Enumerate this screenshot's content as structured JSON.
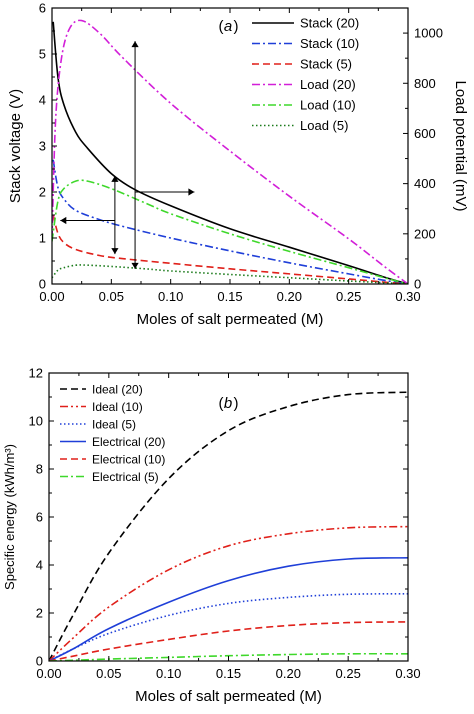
{
  "chart_data": [
    {
      "type": "line",
      "panel_label": "(a)",
      "xlabel": "Moles of salt permeated (M)",
      "ylabel": "Stack voltage (V)",
      "y2label": "Load potential (mV)",
      "xlim": [
        0,
        0.3
      ],
      "ylim": [
        0,
        6
      ],
      "y2lim": [
        0,
        1100
      ],
      "xticks": [
        "0.00",
        "0.05",
        "0.10",
        "0.15",
        "0.20",
        "0.25",
        "0.30"
      ],
      "yticks": [
        "0",
        "1",
        "2",
        "3",
        "4",
        "5",
        "6"
      ],
      "y2ticks": [
        "0",
        "200",
        "400",
        "600",
        "800",
        "1000"
      ],
      "legend_position": "top-right",
      "series": [
        {
          "name": "Stack (20)",
          "axis": "left",
          "color": "#000000",
          "dash": "solid",
          "x": [
            0.001,
            0.005,
            0.01,
            0.02,
            0.03,
            0.05,
            0.07,
            0.1,
            0.15,
            0.2,
            0.25,
            0.28,
            0.3
          ],
          "y": [
            5.7,
            4.5,
            3.9,
            3.3,
            2.95,
            2.4,
            2.05,
            1.7,
            1.2,
            0.8,
            0.4,
            0.15,
            0.0
          ]
        },
        {
          "name": "Stack (10)",
          "axis": "left",
          "color": "#1f3fd8",
          "dash": "dashdot",
          "x": [
            0.001,
            0.005,
            0.01,
            0.02,
            0.04,
            0.06,
            0.1,
            0.15,
            0.2,
            0.25,
            0.28,
            0.3
          ],
          "y": [
            2.7,
            2.1,
            1.85,
            1.6,
            1.4,
            1.25,
            1.0,
            0.72,
            0.46,
            0.22,
            0.08,
            0.0
          ]
        },
        {
          "name": "Stack (5)",
          "axis": "left",
          "color": "#e0201a",
          "dash": "dash",
          "x": [
            0.001,
            0.005,
            0.01,
            0.02,
            0.04,
            0.06,
            0.1,
            0.15,
            0.2,
            0.25,
            0.28,
            0.3
          ],
          "y": [
            1.5,
            1.1,
            0.9,
            0.75,
            0.62,
            0.55,
            0.45,
            0.33,
            0.22,
            0.11,
            0.04,
            0.0
          ]
        },
        {
          "name": "Load (20)",
          "axis": "right",
          "color": "#d21fd8",
          "dash": "dashdot",
          "x": [
            0.0,
            0.003,
            0.008,
            0.015,
            0.025,
            0.04,
            0.06,
            0.1,
            0.15,
            0.2,
            0.25,
            0.28,
            0.3
          ],
          "y": [
            180,
            650,
            900,
            1020,
            1050,
            1000,
            900,
            720,
            530,
            350,
            180,
            70,
            0
          ]
        },
        {
          "name": "Load (10)",
          "axis": "right",
          "color": "#3fd82b",
          "dash": "dashdot",
          "x": [
            0.0,
            0.005,
            0.01,
            0.02,
            0.03,
            0.05,
            0.08,
            0.1,
            0.15,
            0.2,
            0.25,
            0.28,
            0.3
          ],
          "y": [
            170,
            330,
            380,
            410,
            410,
            380,
            320,
            280,
            200,
            130,
            65,
            25,
            0
          ]
        },
        {
          "name": "Load (5)",
          "axis": "right",
          "color": "#1a7a1a",
          "dash": "dot",
          "x": [
            0.0,
            0.005,
            0.01,
            0.02,
            0.03,
            0.05,
            0.08,
            0.1,
            0.15,
            0.2,
            0.25,
            0.28,
            0.3
          ],
          "y": [
            25,
            55,
            65,
            75,
            75,
            70,
            60,
            52,
            38,
            25,
            12,
            5,
            0
          ]
        }
      ],
      "annotations": [
        {
          "type": "double-arrow",
          "x": 0.07,
          "y_from": 0.33,
          "y_to": 5.28,
          "axis": "left"
        },
        {
          "type": "double-arrow",
          "x": 0.053,
          "y_from": 0.65,
          "y_to": 2.35,
          "axis": "left"
        },
        {
          "type": "arrow",
          "x_from": 0.053,
          "x_to": 0.007,
          "y": 1.38,
          "axis": "left"
        },
        {
          "type": "arrow",
          "x_from": 0.07,
          "x_to": 0.12,
          "y": 2.0,
          "axis": "left"
        }
      ]
    },
    {
      "type": "line",
      "panel_label": "(b)",
      "xlabel": "Moles of salt permeated (M)",
      "ylabel": "Specific energy (kWh/m³)",
      "xlim": [
        0,
        0.3
      ],
      "ylim": [
        0,
        12
      ],
      "xticks": [
        "0.00",
        "0.05",
        "0.10",
        "0.15",
        "0.20",
        "0.25",
        "0.30"
      ],
      "yticks": [
        "0",
        "2",
        "4",
        "6",
        "8",
        "10",
        "12"
      ],
      "legend_position": "top-left",
      "series": [
        {
          "name": "Ideal (20)",
          "color": "#000000",
          "dash": "dash",
          "x": [
            0,
            0.02,
            0.05,
            0.1,
            0.15,
            0.2,
            0.25,
            0.3
          ],
          "y": [
            0,
            1.9,
            4.5,
            7.6,
            9.6,
            10.6,
            11.1,
            11.2
          ]
        },
        {
          "name": "Ideal (10)",
          "color": "#e0201a",
          "dash": "dashdotdot",
          "x": [
            0,
            0.02,
            0.05,
            0.1,
            0.15,
            0.2,
            0.25,
            0.3
          ],
          "y": [
            0,
            0.95,
            2.25,
            3.8,
            4.8,
            5.3,
            5.55,
            5.6
          ]
        },
        {
          "name": "Ideal (5)",
          "color": "#1f3fd8",
          "dash": "dot",
          "x": [
            0,
            0.02,
            0.05,
            0.1,
            0.15,
            0.2,
            0.25,
            0.3
          ],
          "y": [
            0,
            0.5,
            1.15,
            1.9,
            2.4,
            2.65,
            2.78,
            2.8
          ]
        },
        {
          "name": "Electrical (20)",
          "color": "#1f3fd8",
          "dash": "solid",
          "x": [
            0,
            0.02,
            0.05,
            0.1,
            0.15,
            0.2,
            0.25,
            0.3
          ],
          "y": [
            0,
            0.5,
            1.35,
            2.45,
            3.35,
            3.95,
            4.25,
            4.3
          ]
        },
        {
          "name": "Electrical (10)",
          "color": "#e0201a",
          "dash": "dash",
          "x": [
            0,
            0.02,
            0.05,
            0.1,
            0.15,
            0.2,
            0.25,
            0.3
          ],
          "y": [
            0,
            0.2,
            0.5,
            0.9,
            1.25,
            1.48,
            1.6,
            1.63
          ]
        },
        {
          "name": "Electrical (5)",
          "color": "#3fd82b",
          "dash": "dashdot",
          "x": [
            0,
            0.02,
            0.05,
            0.1,
            0.15,
            0.2,
            0.25,
            0.3
          ],
          "y": [
            0,
            0.03,
            0.08,
            0.15,
            0.22,
            0.27,
            0.3,
            0.3
          ]
        }
      ]
    }
  ]
}
